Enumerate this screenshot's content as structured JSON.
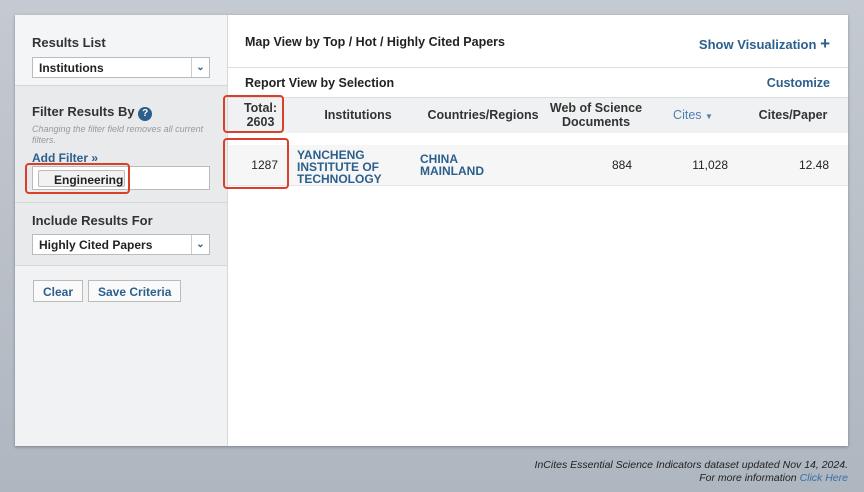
{
  "sidebar": {
    "results_list": {
      "label": "Results List",
      "value": "Institutions"
    },
    "filter": {
      "label": "Filter Results By",
      "help_icon": "question-circle-icon",
      "note": "Changing the filter field removes all current filters.",
      "add_filter": "Add Filter »",
      "chip": "Engineering"
    },
    "include": {
      "label": "Include Results For",
      "value": "Highly Cited Papers"
    },
    "clear": "Clear",
    "save": "Save Criteria"
  },
  "main": {
    "map_view": "Map View by Top / Hot / Highly Cited Papers",
    "show_viz": "Show Visualization",
    "report_view": "Report View by Selection",
    "customize": "Customize",
    "columns": {
      "total_label": "Total:",
      "total_value": "2603",
      "institutions": "Institutions",
      "countries": "Countries/Regions",
      "wos": "Web of Science Documents",
      "cites": "Cites",
      "cites_paper": "Cites/Paper"
    },
    "rows": [
      {
        "rank": "1287",
        "institution": "YANCHENG INSTITUTE OF TECHNOLOGY",
        "country": "CHINA MAINLAND",
        "wos": "884",
        "cites": "11,028",
        "cites_paper": "12.48"
      }
    ]
  },
  "footer": {
    "line1": "InCites Essential Science Indicators dataset updated Nov 14, 2024.",
    "line2": "For more information",
    "click_here": "Click Here"
  },
  "colors": {
    "link": "#2b5f8c",
    "highlight": "#d9402b"
  }
}
